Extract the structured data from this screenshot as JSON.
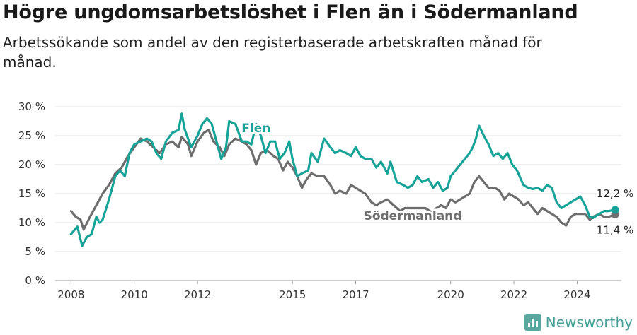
{
  "title": "Högre ungdomsarbetslöshet i Flen än i Södermanland",
  "subtitle": "Arbetssökande som andel av den registerbaserade arbetskraften månad för månad.",
  "brand": {
    "name": "Newsworthy",
    "icon": "bar-chart-icon"
  },
  "chart_data": {
    "type": "line",
    "ylim": [
      0,
      30
    ],
    "yticks": [
      0,
      5,
      10,
      15,
      20,
      25,
      30
    ],
    "ytick_labels": [
      "0 %",
      "5 %",
      "10 %",
      "15 %",
      "20 %",
      "25 %",
      "30 %"
    ],
    "xlim": [
      2007.5,
      2025.4
    ],
    "xticks": [
      2008,
      2010,
      2012,
      2015,
      2017,
      2020,
      2022,
      2024
    ],
    "xtick_labels": [
      "2008",
      "2010",
      "2012",
      "2015",
      "2017",
      "2020",
      "2022",
      "2024"
    ],
    "grid": true,
    "series": [
      {
        "name": "Flen",
        "color": "#17a398",
        "end_label": "12,2 %",
        "points": [
          [
            2008.0,
            8.0
          ],
          [
            2008.2,
            9.3
          ],
          [
            2008.35,
            6.0
          ],
          [
            2008.5,
            7.5
          ],
          [
            2008.65,
            8.0
          ],
          [
            2008.8,
            11.0
          ],
          [
            2008.9,
            10.0
          ],
          [
            2009.0,
            10.5
          ],
          [
            2009.2,
            14.0
          ],
          [
            2009.4,
            18.0
          ],
          [
            2009.55,
            19.0
          ],
          [
            2009.7,
            18.0
          ],
          [
            2009.85,
            22.0
          ],
          [
            2010.0,
            23.5
          ],
          [
            2010.2,
            24.0
          ],
          [
            2010.4,
            24.5
          ],
          [
            2010.55,
            24.0
          ],
          [
            2010.7,
            22.0
          ],
          [
            2010.85,
            21.0
          ],
          [
            2011.0,
            24.0
          ],
          [
            2011.2,
            25.5
          ],
          [
            2011.4,
            26.0
          ],
          [
            2011.5,
            28.8
          ],
          [
            2011.6,
            26.0
          ],
          [
            2011.8,
            23.0
          ],
          [
            2012.0,
            25.0
          ],
          [
            2012.15,
            27.0
          ],
          [
            2012.3,
            28.0
          ],
          [
            2012.45,
            27.0
          ],
          [
            2012.6,
            24.0
          ],
          [
            2012.75,
            21.0
          ],
          [
            2012.9,
            23.0
          ],
          [
            2013.0,
            27.5
          ],
          [
            2013.2,
            27.0
          ],
          [
            2013.4,
            24.0
          ],
          [
            2013.55,
            24.0
          ],
          [
            2013.7,
            23.5
          ],
          [
            2013.85,
            27.0
          ],
          [
            2014.0,
            25.0
          ],
          [
            2014.15,
            22.0
          ],
          [
            2014.3,
            24.0
          ],
          [
            2014.45,
            24.0
          ],
          [
            2014.6,
            21.0
          ],
          [
            2014.75,
            22.0
          ],
          [
            2014.9,
            24.0
          ],
          [
            2015.0,
            21.0
          ],
          [
            2015.15,
            18.0
          ],
          [
            2015.3,
            18.5
          ],
          [
            2015.5,
            19.0
          ],
          [
            2015.6,
            22.0
          ],
          [
            2015.8,
            20.5
          ],
          [
            2016.0,
            24.5
          ],
          [
            2016.2,
            23.0
          ],
          [
            2016.35,
            22.0
          ],
          [
            2016.5,
            22.5
          ],
          [
            2016.7,
            22.0
          ],
          [
            2016.85,
            21.5
          ],
          [
            2017.0,
            23.0
          ],
          [
            2017.15,
            21.5
          ],
          [
            2017.3,
            21.0
          ],
          [
            2017.5,
            21.0
          ],
          [
            2017.65,
            19.5
          ],
          [
            2017.8,
            20.5
          ],
          [
            2018.0,
            18.5
          ],
          [
            2018.1,
            20.5
          ],
          [
            2018.3,
            17.0
          ],
          [
            2018.5,
            16.5
          ],
          [
            2018.65,
            16.0
          ],
          [
            2018.8,
            16.5
          ],
          [
            2018.95,
            18.0
          ],
          [
            2019.1,
            17.0
          ],
          [
            2019.3,
            17.5
          ],
          [
            2019.45,
            16.0
          ],
          [
            2019.6,
            17.0
          ],
          [
            2019.75,
            15.5
          ],
          [
            2019.9,
            16.0
          ],
          [
            2020.0,
            18.0
          ],
          [
            2020.15,
            19.0
          ],
          [
            2020.3,
            20.0
          ],
          [
            2020.45,
            21.0
          ],
          [
            2020.6,
            22.0
          ],
          [
            2020.7,
            23.0
          ],
          [
            2020.8,
            24.5
          ],
          [
            2020.9,
            26.7
          ],
          [
            2021.05,
            25.0
          ],
          [
            2021.2,
            23.5
          ],
          [
            2021.35,
            21.5
          ],
          [
            2021.5,
            22.0
          ],
          [
            2021.65,
            21.0
          ],
          [
            2021.8,
            22.0
          ],
          [
            2021.95,
            20.0
          ],
          [
            2022.1,
            19.0
          ],
          [
            2022.3,
            16.5
          ],
          [
            2022.45,
            16.0
          ],
          [
            2022.6,
            15.8
          ],
          [
            2022.75,
            16.0
          ],
          [
            2022.9,
            15.5
          ],
          [
            2023.05,
            16.5
          ],
          [
            2023.2,
            16.0
          ],
          [
            2023.35,
            13.5
          ],
          [
            2023.5,
            12.5
          ],
          [
            2023.65,
            13.0
          ],
          [
            2023.8,
            13.5
          ],
          [
            2023.95,
            14.0
          ],
          [
            2024.1,
            14.5
          ],
          [
            2024.25,
            13.0
          ],
          [
            2024.4,
            11.0
          ],
          [
            2024.5,
            10.8
          ],
          [
            2024.7,
            11.5
          ],
          [
            2024.85,
            12.0
          ],
          [
            2025.0,
            12.0
          ],
          [
            2025.2,
            12.2
          ]
        ]
      },
      {
        "name": "Södermanland",
        "color": "#6e6e6e",
        "end_label": "11,4 %",
        "points": [
          [
            2008.0,
            12.0
          ],
          [
            2008.15,
            11.0
          ],
          [
            2008.3,
            10.5
          ],
          [
            2008.4,
            8.8
          ],
          [
            2008.6,
            11.0
          ],
          [
            2008.8,
            13.0
          ],
          [
            2009.0,
            15.0
          ],
          [
            2009.2,
            16.5
          ],
          [
            2009.4,
            18.5
          ],
          [
            2009.6,
            19.5
          ],
          [
            2009.8,
            21.5
          ],
          [
            2010.0,
            23.0
          ],
          [
            2010.2,
            24.5
          ],
          [
            2010.4,
            24.0
          ],
          [
            2010.6,
            23.0
          ],
          [
            2010.8,
            22.0
          ],
          [
            2011.0,
            23.5
          ],
          [
            2011.2,
            24.0
          ],
          [
            2011.4,
            23.0
          ],
          [
            2011.5,
            24.8
          ],
          [
            2011.7,
            23.5
          ],
          [
            2011.8,
            21.5
          ],
          [
            2012.0,
            24.0
          ],
          [
            2012.2,
            25.5
          ],
          [
            2012.35,
            26.0
          ],
          [
            2012.5,
            24.0
          ],
          [
            2012.7,
            23.0
          ],
          [
            2012.85,
            21.5
          ],
          [
            2013.0,
            23.5
          ],
          [
            2013.2,
            24.5
          ],
          [
            2013.4,
            24.0
          ],
          [
            2013.55,
            23.5
          ],
          [
            2013.7,
            22.5
          ],
          [
            2013.85,
            20.0
          ],
          [
            2014.0,
            22.0
          ],
          [
            2014.2,
            22.5
          ],
          [
            2014.4,
            21.5
          ],
          [
            2014.55,
            21.0
          ],
          [
            2014.7,
            19.0
          ],
          [
            2014.85,
            20.5
          ],
          [
            2015.0,
            19.5
          ],
          [
            2015.15,
            18.0
          ],
          [
            2015.3,
            16.0
          ],
          [
            2015.45,
            17.5
          ],
          [
            2015.6,
            18.5
          ],
          [
            2015.8,
            18.0
          ],
          [
            2016.0,
            18.0
          ],
          [
            2016.2,
            16.5
          ],
          [
            2016.35,
            15.0
          ],
          [
            2016.5,
            15.5
          ],
          [
            2016.7,
            15.0
          ],
          [
            2016.85,
            16.5
          ],
          [
            2017.0,
            16.0
          ],
          [
            2017.15,
            15.5
          ],
          [
            2017.3,
            15.0
          ],
          [
            2017.5,
            13.5
          ],
          [
            2017.65,
            13.0
          ],
          [
            2017.8,
            13.5
          ],
          [
            2018.0,
            14.0
          ],
          [
            2018.2,
            13.0
          ],
          [
            2018.4,
            12.0
          ],
          [
            2018.55,
            12.5
          ],
          [
            2018.75,
            12.5
          ],
          [
            2019.0,
            12.5
          ],
          [
            2019.2,
            12.5
          ],
          [
            2019.4,
            11.8
          ],
          [
            2019.55,
            12.5
          ],
          [
            2019.7,
            13.0
          ],
          [
            2019.85,
            12.5
          ],
          [
            2020.0,
            14.0
          ],
          [
            2020.15,
            13.5
          ],
          [
            2020.3,
            14.0
          ],
          [
            2020.45,
            14.5
          ],
          [
            2020.6,
            15.0
          ],
          [
            2020.75,
            17.0
          ],
          [
            2020.9,
            18.0
          ],
          [
            2021.05,
            17.0
          ],
          [
            2021.2,
            16.0
          ],
          [
            2021.4,
            16.0
          ],
          [
            2021.55,
            15.5
          ],
          [
            2021.7,
            14.0
          ],
          [
            2021.85,
            15.0
          ],
          [
            2022.0,
            14.5
          ],
          [
            2022.15,
            14.0
          ],
          [
            2022.3,
            13.0
          ],
          [
            2022.45,
            13.5
          ],
          [
            2022.6,
            12.5
          ],
          [
            2022.75,
            11.5
          ],
          [
            2022.9,
            12.5
          ],
          [
            2023.05,
            12.0
          ],
          [
            2023.2,
            11.5
          ],
          [
            2023.35,
            11.0
          ],
          [
            2023.5,
            10.0
          ],
          [
            2023.65,
            9.5
          ],
          [
            2023.8,
            11.0
          ],
          [
            2023.95,
            11.5
          ],
          [
            2024.1,
            11.5
          ],
          [
            2024.25,
            11.5
          ],
          [
            2024.4,
            10.5
          ],
          [
            2024.5,
            11.0
          ],
          [
            2024.7,
            11.5
          ],
          [
            2024.85,
            11.0
          ],
          [
            2025.0,
            11.0
          ],
          [
            2025.2,
            11.4
          ]
        ]
      }
    ]
  }
}
